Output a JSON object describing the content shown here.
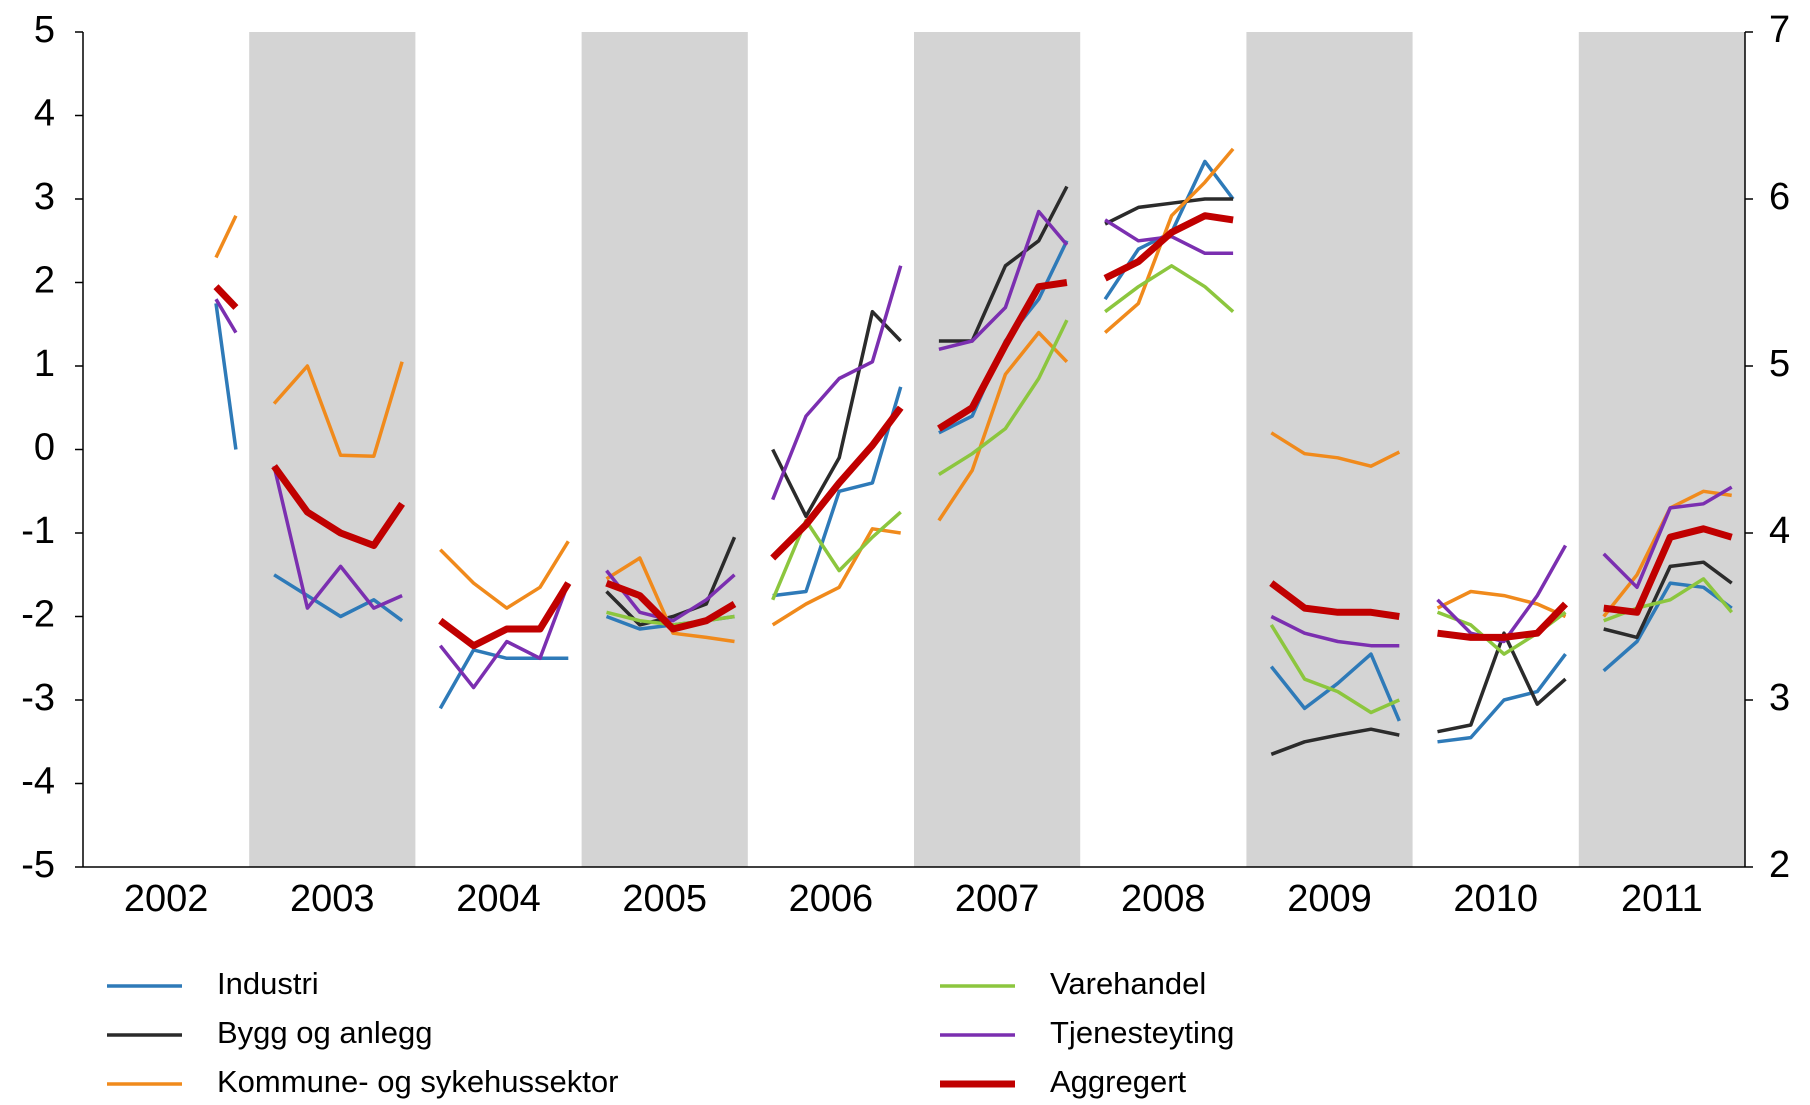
{
  "chart_data": {
    "type": "line",
    "x": [
      2002.8,
      2002.92,
      2003,
      2003.15,
      2003.35,
      2003.55,
      2003.75,
      2003.92,
      2004,
      2004.15,
      2004.35,
      2004.55,
      2004.75,
      2004.92,
      2005,
      2005.15,
      2005.35,
      2005.55,
      2005.75,
      2005.92,
      2006,
      2006.15,
      2006.35,
      2006.55,
      2006.75,
      2006.92,
      2007,
      2007.15,
      2007.35,
      2007.55,
      2007.75,
      2007.92,
      2008,
      2008.15,
      2008.35,
      2008.55,
      2008.75,
      2008.92,
      2009,
      2009.15,
      2009.35,
      2009.55,
      2009.75,
      2009.92,
      2010,
      2010.15,
      2010.35,
      2010.55,
      2010.75,
      2010.92,
      2011,
      2011.15,
      2011.35,
      2011.55,
      2011.75,
      2011.92
    ],
    "xlim": [
      2002,
      2012
    ],
    "xticks": [
      {
        "value": 2002.5,
        "label": "2002"
      },
      {
        "value": 2003.5,
        "label": "2003"
      },
      {
        "value": 2004.5,
        "label": "2004"
      },
      {
        "value": 2005.5,
        "label": "2005"
      },
      {
        "value": 2006.5,
        "label": "2006"
      },
      {
        "value": 2007.5,
        "label": "2007"
      },
      {
        "value": 2008.5,
        "label": "2008"
      },
      {
        "value": 2009.5,
        "label": "2009"
      },
      {
        "value": 2010.5,
        "label": "2010"
      },
      {
        "value": 2011.5,
        "label": "2011"
      }
    ],
    "ylim": [
      -5,
      5
    ],
    "yticks": [
      -5,
      -4,
      -3,
      -2,
      -1,
      0,
      1,
      2,
      3,
      4,
      5
    ],
    "y2lim": [
      2,
      7
    ],
    "y2ticks": [
      2,
      3,
      4,
      5,
      6,
      7
    ],
    "shaded_years": [
      2003,
      2005,
      2007,
      2009,
      2011
    ],
    "shade_color": "#d4d4d4",
    "legend": "bottom",
    "series": [
      {
        "name": "Industri",
        "color": "#2e7ab8",
        "line_width": 3.5,
        "values": [
          1.75,
          0.0,
          null,
          -1.5,
          -1.75,
          -2.0,
          -1.8,
          -2.05,
          null,
          -3.1,
          -2.4,
          -2.5,
          -2.5,
          -2.5,
          null,
          -2.0,
          -2.15,
          -2.1,
          -2.05,
          -2.0,
          null,
          -1.75,
          -1.7,
          -0.5,
          -0.4,
          0.75,
          null,
          0.2,
          0.4,
          1.3,
          1.8,
          2.5,
          null,
          1.8,
          2.4,
          2.6,
          3.45,
          3.0,
          null,
          -2.6,
          -3.1,
          -2.8,
          -2.45,
          -3.25,
          null,
          -3.5,
          -3.45,
          -3.0,
          -2.9,
          -2.45,
          null,
          -2.65,
          -2.3,
          -1.6,
          -1.65,
          -1.9
        ]
      },
      {
        "name": "Bygg og anlegg",
        "color": "#2b2b2b",
        "line_width": 3.5,
        "values": [
          null,
          null,
          null,
          null,
          null,
          null,
          null,
          null,
          null,
          null,
          null,
          null,
          null,
          null,
          null,
          -1.7,
          -2.1,
          -2.0,
          -1.85,
          -1.05,
          null,
          0.0,
          -0.8,
          -0.1,
          1.65,
          1.3,
          null,
          1.3,
          1.3,
          2.2,
          2.5,
          3.15,
          null,
          2.7,
          2.9,
          2.95,
          3.0,
          3.0,
          null,
          -3.65,
          -3.5,
          -3.42,
          -3.35,
          -3.42,
          null,
          -3.38,
          -3.3,
          -2.2,
          -3.05,
          -2.75,
          null,
          -2.15,
          -2.25,
          -1.4,
          -1.35,
          -1.6
        ]
      },
      {
        "name": "Kommune- og sykehussektor",
        "color": "#f08a1c",
        "line_width": 3.5,
        "values": [
          2.3,
          2.8,
          null,
          0.55,
          1.0,
          -0.07,
          -0.08,
          1.05,
          null,
          -1.2,
          -1.6,
          -1.9,
          -1.65,
          -1.1,
          null,
          -1.55,
          -1.3,
          -2.2,
          -2.25,
          -2.3,
          null,
          -2.1,
          -1.85,
          -1.65,
          -0.95,
          -1.0,
          null,
          -0.85,
          -0.25,
          0.9,
          1.4,
          1.05,
          null,
          1.4,
          1.75,
          2.8,
          3.2,
          3.6,
          null,
          0.2,
          -0.05,
          -0.1,
          -0.2,
          -0.03,
          null,
          -1.9,
          -1.7,
          -1.75,
          -1.85,
          -2.0,
          null,
          -2.0,
          -1.5,
          -0.7,
          -0.5,
          -0.55
        ]
      },
      {
        "name": "Varehandel",
        "color": "#8cc63e",
        "line_width": 3.5,
        "values": [
          null,
          null,
          null,
          null,
          null,
          null,
          null,
          null,
          null,
          null,
          null,
          null,
          null,
          null,
          null,
          -1.95,
          -2.05,
          -2.1,
          -2.05,
          -2.0,
          null,
          -1.8,
          -0.85,
          -1.45,
          -1.05,
          -0.75,
          null,
          -0.3,
          -0.05,
          0.25,
          0.85,
          1.55,
          null,
          1.65,
          1.95,
          2.2,
          1.95,
          1.65,
          null,
          -2.1,
          -2.75,
          -2.9,
          -3.15,
          -3.0,
          null,
          -1.95,
          -2.1,
          -2.45,
          -2.2,
          -1.95,
          null,
          -2.05,
          -1.9,
          -1.8,
          -1.55,
          -1.95
        ]
      },
      {
        "name": "Tjenesteyting",
        "color": "#7b2fb0",
        "line_width": 3.5,
        "values": [
          1.8,
          1.4,
          null,
          -0.2,
          -1.9,
          -1.4,
          -1.9,
          -1.75,
          null,
          -2.35,
          -2.85,
          -2.3,
          -2.5,
          -1.6,
          null,
          -1.45,
          -1.95,
          -2.05,
          -1.8,
          -1.5,
          null,
          -0.6,
          0.4,
          0.85,
          1.05,
          2.2,
          null,
          1.2,
          1.3,
          1.7,
          2.85,
          2.45,
          null,
          2.75,
          2.5,
          2.55,
          2.35,
          2.35,
          null,
          -2.0,
          -2.2,
          -2.3,
          -2.35,
          -2.35,
          null,
          -1.8,
          -2.2,
          -2.3,
          -1.75,
          -1.15,
          null,
          -1.25,
          -1.65,
          -0.7,
          -0.65,
          -0.45
        ]
      },
      {
        "name": "Aggregert",
        "color": "#c00000",
        "line_width": 7,
        "values": [
          1.95,
          1.7,
          null,
          -0.2,
          -0.75,
          -1.0,
          -1.15,
          -0.65,
          null,
          -2.05,
          -2.35,
          -2.15,
          -2.15,
          -1.6,
          null,
          -1.6,
          -1.75,
          -2.15,
          -2.05,
          -1.85,
          null,
          -1.3,
          -0.9,
          -0.4,
          0.05,
          0.5,
          null,
          0.25,
          0.5,
          1.25,
          1.95,
          2.0,
          null,
          2.05,
          2.25,
          2.6,
          2.8,
          2.75,
          null,
          -1.6,
          -1.9,
          -1.95,
          -1.95,
          -2.0,
          null,
          -2.2,
          -2.25,
          -2.25,
          -2.2,
          -1.85,
          null,
          -1.9,
          -1.95,
          -1.05,
          -0.95,
          -1.05
        ]
      }
    ]
  }
}
